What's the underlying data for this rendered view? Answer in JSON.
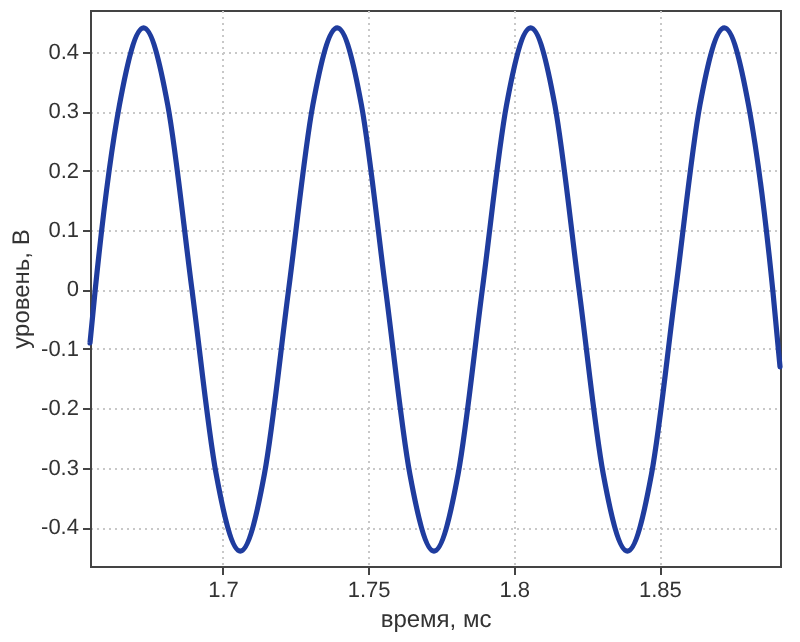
{
  "chart_data": {
    "type": "line",
    "xlabel": "время, мс",
    "ylabel": "уровень, В",
    "x": [
      1.6545,
      1.6563,
      1.6646,
      1.6729,
      1.6812,
      1.6895,
      1.6978,
      1.7061,
      1.7144,
      1.7227,
      1.731,
      1.7394,
      1.7477,
      1.756,
      1.7643,
      1.7726,
      1.7809,
      1.7892,
      1.7975,
      1.8058,
      1.8141,
      1.8224,
      1.8307,
      1.839,
      1.8473,
      1.8556,
      1.8639,
      1.8723,
      1.8806,
      1.8889,
      1.8914
    ],
    "series": [
      {
        "color": "#1f3c9e",
        "values": [
          -0.09,
          0,
          0.31,
          0.44,
          0.31,
          0,
          -0.31,
          -0.44,
          -0.31,
          0,
          0.31,
          0.44,
          0.31,
          0,
          -0.31,
          -0.44,
          -0.31,
          0,
          0.31,
          0.44,
          0.31,
          0,
          -0.31,
          -0.44,
          -0.31,
          0,
          0.31,
          0.44,
          0.31,
          0,
          -0.13
        ]
      }
    ],
    "xlim": [
      1.6545,
      1.8914
    ],
    "xticks": [
      1.7,
      1.75,
      1.8,
      1.85
    ],
    "ylim": [
      -0.465,
      0.47
    ],
    "yticks": [
      -0.4,
      -0.3,
      -0.2,
      -0.1,
      0,
      0.1,
      0.2,
      0.3,
      0.4
    ],
    "grid": true,
    "line_style": "solid"
  }
}
